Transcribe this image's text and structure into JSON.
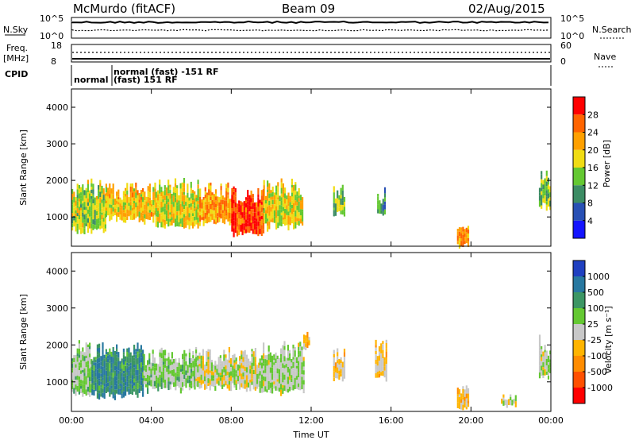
{
  "header": {
    "station": "McMurdo (fitACF)",
    "beam": "Beam 09",
    "date": "02/Aug/2015"
  },
  "top_panels": {
    "nsky_label": "N.Sky",
    "nsky_ticks": [
      "10^5",
      "10^0"
    ],
    "nsearch_label": "N.Search",
    "freq_label": "Freq.",
    "freq_unit": "[MHz]",
    "freq_ticks": [
      "18",
      "8"
    ],
    "nave_label": "Nave",
    "nave_ticks": [
      "60",
      "0"
    ],
    "cpid_label": "CPID",
    "cpid_entries": [
      "normal",
      "normal (fast) -151 RF",
      "(fast) 151 RF"
    ]
  },
  "colors": {
    "power_scale": [
      "#1414ff",
      "#2850b4",
      "#3c8c64",
      "#64c832",
      "#f0dc14",
      "#ffa000",
      "#ff6400",
      "#ff0000"
    ],
    "velocity_scale": [
      "#2040c0",
      "#2878a0",
      "#3c9664",
      "#64c832",
      "#c8c8c8",
      "#ffb400",
      "#ff8c00",
      "#ff5000",
      "#ff0000"
    ]
  },
  "chart_data": [
    {
      "type": "heatmap",
      "quantity": "power",
      "ylabel": "Slant Range [km]",
      "xlim": [
        0,
        24
      ],
      "ylim": [
        200,
        4500
      ],
      "yticks": [
        "1000",
        "2000",
        "3000",
        "4000"
      ],
      "colorbar_label": "Power [dB]",
      "colorbar_ticks": [
        "4",
        "8",
        "12",
        "16",
        "20",
        "24",
        "28"
      ],
      "colorbar_range": [
        0,
        32
      ],
      "echo_regions": [
        {
          "t0": 0.0,
          "t1": 1.7,
          "r0": 700,
          "r1": 1800,
          "power": 16
        },
        {
          "t0": 1.7,
          "t1": 4.2,
          "r0": 1000,
          "r1": 1700,
          "power": 20
        },
        {
          "t0": 4.2,
          "t1": 6.4,
          "r0": 800,
          "r1": 1800,
          "power": 18
        },
        {
          "t0": 6.4,
          "t1": 8.0,
          "r0": 900,
          "r1": 1700,
          "power": 22
        },
        {
          "t0": 8.0,
          "t1": 9.6,
          "r0": 600,
          "r1": 1600,
          "power": 28
        },
        {
          "t0": 9.6,
          "t1": 11.6,
          "r0": 800,
          "r1": 1800,
          "power": 18
        },
        {
          "t0": 13.1,
          "t1": 13.7,
          "r0": 1100,
          "r1": 1700,
          "power": 14
        },
        {
          "t0": 15.3,
          "t1": 15.7,
          "r0": 1200,
          "r1": 1600,
          "power": 12
        },
        {
          "t0": 19.3,
          "t1": 19.9,
          "r0": 300,
          "r1": 700,
          "power": 22
        },
        {
          "t0": 23.4,
          "t1": 24.0,
          "r0": 1300,
          "r1": 2000,
          "power": 14
        }
      ]
    },
    {
      "type": "heatmap",
      "quantity": "velocity",
      "xlabel": "Time UT",
      "ylabel": "Slant Range [km]",
      "xlim": [
        0,
        24
      ],
      "ylim": [
        200,
        4500
      ],
      "xticks": [
        "00:00",
        "04:00",
        "08:00",
        "12:00",
        "16:00",
        "20:00",
        "00:00"
      ],
      "yticks": [
        "1000",
        "2000",
        "3000",
        "4000"
      ],
      "colorbar_label": "Velocity [m s⁻¹]",
      "colorbar_ticks": [
        "1000",
        "500",
        "100",
        "25",
        "-25",
        "-100",
        "-500",
        "-1000"
      ],
      "colorbar_range": [
        -1500,
        1500
      ],
      "echo_regions": [
        {
          "t0": 0.0,
          "t1": 1.0,
          "r0": 700,
          "r1": 1900,
          "velocity": 200
        },
        {
          "t0": 1.0,
          "t1": 3.6,
          "r0": 700,
          "r1": 1800,
          "velocity": 800
        },
        {
          "t0": 3.6,
          "t1": 6.2,
          "r0": 900,
          "r1": 1700,
          "velocity": 250
        },
        {
          "t0": 6.2,
          "t1": 9.4,
          "r0": 900,
          "r1": 1700,
          "velocity": 0
        },
        {
          "t0": 9.4,
          "t1": 11.6,
          "r0": 800,
          "r1": 1900,
          "velocity": 150
        },
        {
          "t0": 11.6,
          "t1": 11.9,
          "r0": 2000,
          "r1": 2400,
          "velocity": -200
        },
        {
          "t0": 13.1,
          "t1": 13.7,
          "r0": 1100,
          "r1": 1700,
          "velocity": -200
        },
        {
          "t0": 15.2,
          "t1": 15.8,
          "r0": 1200,
          "r1": 1900,
          "velocity": -200
        },
        {
          "t0": 19.3,
          "t1": 19.9,
          "r0": 300,
          "r1": 800,
          "velocity": -200
        },
        {
          "t0": 21.5,
          "t1": 22.2,
          "r0": 400,
          "r1": 600,
          "velocity": 60
        },
        {
          "t0": 23.4,
          "t1": 24.0,
          "r0": 1200,
          "r1": 2000,
          "velocity": 100
        }
      ]
    }
  ]
}
